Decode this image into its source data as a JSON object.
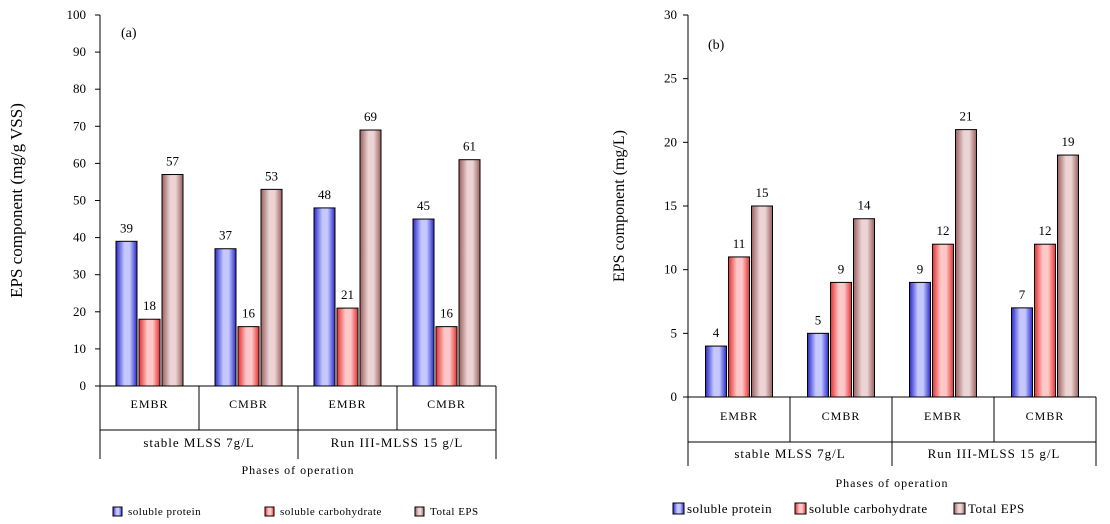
{
  "chart_data": [
    {
      "type": "bar",
      "panel_label": "(a)",
      "ylabel": "EPS component (mg/g VSS)",
      "xlabel": "Phases of operation",
      "ylim": [
        0,
        100
      ],
      "yticks": [
        0,
        10,
        20,
        30,
        40,
        50,
        60,
        70,
        80,
        90,
        100
      ],
      "ytick_labels": [
        "0",
        "10",
        "20",
        "30",
        "40",
        "50",
        "60",
        "70",
        "80",
        "90",
        "100"
      ],
      "categories": [
        "EMBR",
        "CMBR",
        "EMBR",
        "CMBR"
      ],
      "groups": [
        {
          "label": "stable MLSS 7g/L",
          "span": 2
        },
        {
          "label": "Run III-MLSS 15 g/L",
          "span": 2
        }
      ],
      "series": [
        {
          "name": "soluble protein",
          "values": [
            39,
            37,
            48,
            45
          ],
          "labels": [
            "39",
            "37",
            "48",
            "45"
          ]
        },
        {
          "name": "soluble carbohydrate",
          "values": [
            18,
            16,
            21,
            16
          ],
          "labels": [
            "18",
            "16",
            "21",
            "16"
          ]
        },
        {
          "name": "Total EPS",
          "values": [
            57,
            53,
            69,
            61
          ],
          "labels": [
            "57",
            "53",
            "69",
            "61"
          ]
        }
      ],
      "legend": "bottom"
    },
    {
      "type": "bar",
      "panel_label": "(b)",
      "ylabel": "EPS component (mg/L)",
      "xlabel": "Phases of operation",
      "ylim": [
        0,
        30
      ],
      "yticks": [
        0,
        5,
        10,
        15,
        20,
        25,
        30
      ],
      "ytick_labels": [
        "0",
        "5",
        "10",
        "15",
        "20",
        "25",
        "30"
      ],
      "categories": [
        "EMBR",
        "CMBR",
        "EMBR",
        "CMBR"
      ],
      "groups": [
        {
          "label": "stable MLSS 7g/L",
          "span": 2
        },
        {
          "label": "Run III-MLSS 15 g/L",
          "span": 2
        }
      ],
      "series": [
        {
          "name": "soluble protein",
          "values": [
            4,
            5,
            9,
            7
          ],
          "labels": [
            "4",
            "5",
            "9",
            "7"
          ]
        },
        {
          "name": "soluble carbohydrate",
          "values": [
            11,
            9,
            12,
            12
          ],
          "labels": [
            "11",
            "9",
            "12",
            "12"
          ]
        },
        {
          "name": "Total EPS",
          "values": [
            15,
            14,
            21,
            19
          ],
          "labels": [
            "15",
            "14",
            "21",
            "19"
          ]
        }
      ],
      "legend": "bottom"
    }
  ],
  "colors": {
    "protein": [
      "#2a2ac8",
      "#c4c8ff"
    ],
    "carbohydrate": [
      "#e53030",
      "#ffc8c8"
    ],
    "total": [
      "#9a6060",
      "#ecd4d4"
    ]
  }
}
